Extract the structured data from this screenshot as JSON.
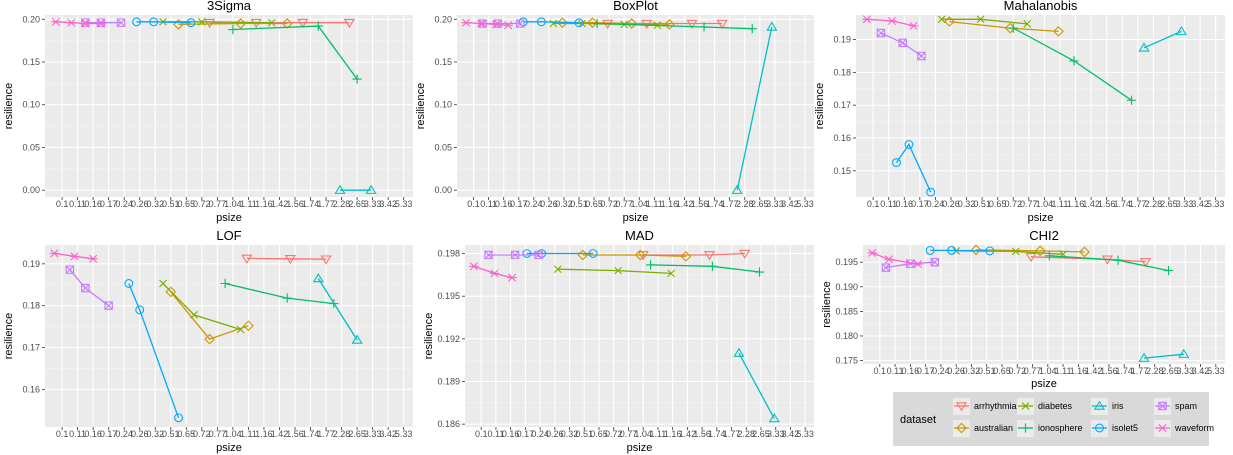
{
  "chart_data": [
    {
      "type": "line",
      "title": "3Sigma",
      "xlabel": "psize",
      "ylabel": "resilience",
      "yticks": [
        "0.00",
        "0.05",
        "0.10",
        "0.15",
        "0.20"
      ],
      "ylim": [
        -0.008,
        0.205
      ],
      "series": [
        {
          "name": "arrhythmia",
          "points": [
            [
              9.5,
              0.196
            ],
            [
              12.5,
              0.196
            ],
            [
              15.5,
              0.196
            ],
            [
              18.5,
              0.196
            ]
          ]
        },
        {
          "name": "australian",
          "points": [
            [
              7.5,
              0.194
            ],
            [
              11.5,
              0.195
            ],
            [
              14.5,
              0.195
            ]
          ]
        },
        {
          "name": "diabetes",
          "points": [
            [
              6.5,
              0.197
            ],
            [
              9,
              0.197
            ],
            [
              13.5,
              0.196
            ]
          ]
        },
        {
          "name": "ionosphere",
          "points": [
            [
              11,
              0.188
            ],
            [
              16.5,
              0.192
            ],
            [
              19,
              0.13
            ]
          ]
        },
        {
          "name": "iris",
          "points": [
            [
              17.9,
              0.0
            ],
            [
              19.9,
              0.0
            ]
          ]
        },
        {
          "name": "isolet5",
          "points": [
            [
              4.8,
              0.197
            ],
            [
              5.9,
              0.197
            ],
            [
              8.3,
              0.196
            ]
          ]
        },
        {
          "name": "spam",
          "points": [
            [
              1.5,
              0.196
            ],
            [
              2.5,
              0.196
            ],
            [
              3.8,
              0.196
            ]
          ]
        },
        {
          "name": "waveform",
          "points": [
            [
              -0.4,
              0.197
            ],
            [
              0.6,
              0.196
            ],
            [
              1.5,
              0.195
            ],
            [
              2.5,
              0.195
            ]
          ]
        }
      ]
    },
    {
      "type": "line",
      "title": "BoxPlot",
      "xlabel": "psize",
      "ylabel": "resilience",
      "yticks": [
        "0.00",
        "0.05",
        "0.10",
        "0.15",
        "0.20"
      ],
      "ylim": [
        -0.008,
        0.205
      ],
      "series": [
        {
          "name": "arrhythmia",
          "points": [
            [
              8.9,
              0.195
            ],
            [
              11.5,
              0.195
            ],
            [
              14.5,
              0.195
            ],
            [
              16.5,
              0.195
            ]
          ]
        },
        {
          "name": "australian",
          "points": [
            [
              5.9,
              0.196
            ],
            [
              7.9,
              0.196
            ],
            [
              10.5,
              0.195
            ],
            [
              13,
              0.194
            ]
          ]
        },
        {
          "name": "diabetes",
          "points": [
            [
              5.3,
              0.195
            ],
            [
              7.2,
              0.195
            ],
            [
              10,
              0.194
            ],
            [
              12.2,
              0.193
            ]
          ]
        },
        {
          "name": "ionosphere",
          "points": [
            [
              8.2,
              0.195
            ],
            [
              15.3,
              0.191
            ],
            [
              18.5,
              0.189
            ]
          ]
        },
        {
          "name": "iris",
          "points": [
            [
              17.5,
              0.0
            ],
            [
              19.8,
              0.191
            ]
          ]
        },
        {
          "name": "isolet5",
          "points": [
            [
              3.3,
              0.197
            ],
            [
              4.5,
              0.197
            ],
            [
              7,
              0.196
            ]
          ]
        },
        {
          "name": "spam",
          "points": [
            [
              0.6,
              0.195
            ],
            [
              1.6,
              0.195
            ],
            [
              3.1,
              0.195
            ]
          ]
        },
        {
          "name": "waveform",
          "points": [
            [
              -0.5,
              0.196
            ],
            [
              0.5,
              0.195
            ],
            [
              1.5,
              0.194
            ],
            [
              2.3,
              0.193
            ]
          ]
        }
      ]
    },
    {
      "type": "line",
      "title": "Mahalanobis",
      "xlabel": "psize",
      "ylabel": "resilience",
      "yticks": [
        "0.15",
        "0.16",
        "0.17",
        "0.18",
        "0.19"
      ],
      "ylim": [
        0.142,
        0.1975
      ],
      "series": [
        {
          "name": "australian",
          "points": [
            [
              4.9,
              0.1955
            ],
            [
              8.8,
              0.1935
            ],
            [
              11.9,
              0.1925
            ]
          ]
        },
        {
          "name": "diabetes",
          "points": [
            [
              4.4,
              0.1962
            ],
            [
              6.9,
              0.1962
            ],
            [
              9.9,
              0.1948
            ]
          ]
        },
        {
          "name": "ionosphere",
          "points": [
            [
              9.0,
              0.1935
            ],
            [
              12.9,
              0.1835
            ],
            [
              16.6,
              0.1715
            ]
          ]
        },
        {
          "name": "iris",
          "points": [
            [
              17.4,
              0.1875
            ],
            [
              19.8,
              0.1925
            ]
          ]
        },
        {
          "name": "isolet5",
          "points": [
            [
              1.5,
              0.1525
            ],
            [
              2.3,
              0.158
            ],
            [
              3.7,
              0.1435
            ]
          ]
        },
        {
          "name": "spam",
          "points": [
            [
              0.5,
              0.192
            ],
            [
              1.9,
              0.189
            ],
            [
              3.1,
              0.185
            ]
          ]
        },
        {
          "name": "waveform",
          "points": [
            [
              -0.4,
              0.1962
            ],
            [
              1.2,
              0.1957
            ],
            [
              2.6,
              0.1942
            ]
          ]
        }
      ]
    },
    {
      "type": "line",
      "title": "LOF",
      "xlabel": "psize",
      "ylabel": "resilience",
      "yticks": [
        "0.16",
        "0.17",
        "0.18",
        "0.19"
      ],
      "ylim": [
        0.151,
        0.1945
      ],
      "series": [
        {
          "name": "arrhythmia",
          "points": [
            [
              11.9,
              0.1913
            ],
            [
              14.7,
              0.1912
            ],
            [
              17.0,
              0.1911
            ]
          ]
        },
        {
          "name": "australian",
          "points": [
            [
              7.0,
              0.1833
            ],
            [
              9.5,
              0.172
            ],
            [
              12.0,
              0.1752
            ]
          ]
        },
        {
          "name": "diabetes",
          "points": [
            [
              6.5,
              0.1853
            ],
            [
              8.5,
              0.1778
            ],
            [
              11.5,
              0.1743
            ]
          ]
        },
        {
          "name": "ionosphere",
          "points": [
            [
              10.5,
              0.1853
            ],
            [
              14.5,
              0.1818
            ],
            [
              17.5,
              0.1805
            ]
          ]
        },
        {
          "name": "iris",
          "points": [
            [
              16.5,
              0.1865
            ],
            [
              19.0,
              0.1718
            ]
          ]
        },
        {
          "name": "isolet5",
          "points": [
            [
              4.3,
              0.1853
            ],
            [
              5.0,
              0.179
            ],
            [
              7.5,
              0.1532
            ]
          ]
        },
        {
          "name": "spam",
          "points": [
            [
              0.5,
              0.1886
            ],
            [
              1.5,
              0.1842
            ],
            [
              3.0,
              0.18
            ]
          ]
        },
        {
          "name": "waveform",
          "points": [
            [
              -0.5,
              0.1925
            ],
            [
              0.8,
              0.1918
            ],
            [
              2.0,
              0.1912
            ]
          ]
        }
      ]
    },
    {
      "type": "line",
      "title": "MAD",
      "xlabel": "psize",
      "ylabel": "resilience",
      "yticks": [
        "0.186",
        "0.189",
        "0.192",
        "0.195",
        "0.198"
      ],
      "ylim": [
        0.1858,
        0.1986
      ],
      "series": [
        {
          "name": "arrhythmia",
          "points": [
            [
              11.0,
              0.1979
            ],
            [
              15.5,
              0.1979
            ],
            [
              17.9,
              0.198
            ]
          ]
        },
        {
          "name": "australian",
          "points": [
            [
              6.9,
              0.1979
            ],
            [
              10.8,
              0.1979
            ],
            [
              13.9,
              0.1978
            ]
          ]
        },
        {
          "name": "diabetes",
          "points": [
            [
              5.2,
              0.1969
            ],
            [
              9.3,
              0.1968
            ],
            [
              12.9,
              0.1966
            ]
          ]
        },
        {
          "name": "ionosphere",
          "points": [
            [
              11.5,
              0.1972
            ],
            [
              15.7,
              0.1971
            ],
            [
              18.9,
              0.1967
            ]
          ]
        },
        {
          "name": "iris",
          "points": [
            [
              17.5,
              0.191
            ],
            [
              19.9,
              0.1864
            ]
          ]
        },
        {
          "name": "isolet5",
          "points": [
            [
              3.1,
              0.198
            ],
            [
              4.1,
              0.198
            ],
            [
              7.6,
              0.198
            ]
          ]
        },
        {
          "name": "spam",
          "points": [
            [
              0.5,
              0.1979
            ],
            [
              2.3,
              0.1979
            ],
            [
              3.9,
              0.1979
            ]
          ]
        },
        {
          "name": "waveform",
          "points": [
            [
              -0.5,
              0.1971
            ],
            [
              0.9,
              0.1966
            ],
            [
              2.1,
              0.1963
            ]
          ]
        }
      ]
    },
    {
      "type": "line",
      "title": "CHI2",
      "xlabel": "psize",
      "ylabel": "resilience",
      "yticks": [
        "0.175",
        "0.180",
        "0.185",
        "0.190",
        "0.195"
      ],
      "ylim": [
        0.1743,
        0.1985
      ],
      "series": [
        {
          "name": "arrhythmia",
          "points": [
            [
              9.9,
              0.1961
            ],
            [
              14.9,
              0.1956
            ],
            [
              17.4,
              0.1951
            ]
          ]
        },
        {
          "name": "australian",
          "points": [
            [
              6.3,
              0.1975
            ],
            [
              10.5,
              0.1973
            ],
            [
              13.4,
              0.1971
            ]
          ]
        },
        {
          "name": "diabetes",
          "points": [
            [
              5.0,
              0.1973
            ],
            [
              8.9,
              0.1972
            ],
            [
              12.0,
              0.1966
            ]
          ]
        },
        {
          "name": "ionosphere",
          "points": [
            [
              11.1,
              0.1963
            ],
            [
              15.6,
              0.1954
            ],
            [
              18.9,
              0.1933
            ]
          ]
        },
        {
          "name": "iris",
          "points": [
            [
              17.3,
              0.1755
            ],
            [
              19.9,
              0.1763
            ]
          ]
        },
        {
          "name": "isolet5",
          "points": [
            [
              3.3,
              0.1974
            ],
            [
              4.7,
              0.1974
            ],
            [
              7.2,
              0.1973
            ]
          ]
        },
        {
          "name": "spam",
          "points": [
            [
              0.4,
              0.1939
            ],
            [
              2.0,
              0.1947
            ],
            [
              3.6,
              0.195
            ]
          ]
        },
        {
          "name": "waveform",
          "points": [
            [
              -0.5,
              0.1969
            ],
            [
              0.6,
              0.1956
            ],
            [
              2.5,
              0.1946
            ]
          ]
        }
      ]
    }
  ],
  "xticks": [
    "0.1",
    "0.11",
    "0.16",
    "0.17",
    "0.24",
    "0.26",
    "0.32",
    "0.51",
    "0.65",
    "0.72",
    "0.77",
    "1.04",
    "1.11",
    "1.16",
    "1.42",
    "1.56",
    "1.74",
    "1.77",
    "2.28",
    "2.65",
    "3.33",
    "3.42",
    "5.33"
  ],
  "legend": {
    "title": "dataset",
    "placement": "bottom-right",
    "items": [
      {
        "label": "arrhythmia",
        "color": "#F8766D",
        "shape": "triangle-down"
      },
      {
        "label": "australian",
        "color": "#CD9600",
        "shape": "diamond"
      },
      {
        "label": "diabetes",
        "color": "#7CAE00",
        "shape": "x"
      },
      {
        "label": "ionosphere",
        "color": "#00BE67",
        "shape": "plus"
      },
      {
        "label": "iris",
        "color": "#00BFC4",
        "shape": "triangle-up"
      },
      {
        "label": "isolet5",
        "color": "#00A9FF",
        "shape": "circle"
      },
      {
        "label": "spam",
        "color": "#C77CFF",
        "shape": "square-x"
      },
      {
        "label": "waveform",
        "color": "#FF61CC",
        "shape": "asterisk"
      }
    ]
  },
  "grid": true,
  "background": "#EBEBEB"
}
